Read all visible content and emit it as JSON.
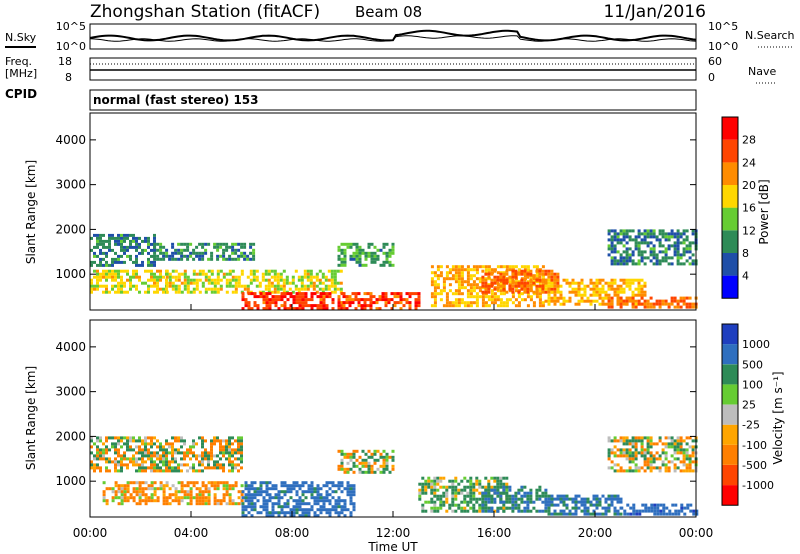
{
  "header": {
    "station": "Zhongshan Station (fitACF)",
    "beam": "Beam 08",
    "date": "11/Jan/2016"
  },
  "noise_panel": {
    "left_label": "N.Sky",
    "right_label": "N.Search",
    "left_ticks": [
      "10^5",
      "10^0"
    ],
    "right_ticks": [
      "10^5",
      "10^0"
    ]
  },
  "freq_panel": {
    "left_label_line1": "Freq.",
    "left_label_line2": "[MHz]",
    "right_label": "Nave",
    "left_ticks": [
      "18",
      "8"
    ],
    "right_ticks": [
      "60",
      "0"
    ]
  },
  "cpid": {
    "label": "CPID",
    "text": "normal (fast stereo) 153"
  },
  "axes": {
    "ylabel": "Slant Range [km]",
    "xlabel": "Time UT",
    "x_ticks": [
      "00:00",
      "04:00",
      "08:00",
      "12:00",
      "16:00",
      "20:00",
      "00:00"
    ],
    "y_ticks": [
      "1000",
      "2000",
      "3000",
      "4000"
    ]
  },
  "power_scale": {
    "label": "Power [dB]",
    "ticks": [
      "4",
      "8",
      "12",
      "16",
      "20",
      "24",
      "28"
    ],
    "colors": [
      "#0000ff",
      "#1f4fa8",
      "#2e8b57",
      "#66cc33",
      "#ffd700",
      "#ff8c00",
      "#ff4500",
      "#ff0000"
    ]
  },
  "velocity_scale": {
    "label": "Velocity [m s⁻¹]",
    "ticks": [
      "1000",
      "500",
      "100",
      "25",
      "-25",
      "-100",
      "-500",
      "-1000"
    ],
    "colors": [
      "#1f3fbf",
      "#2f6fbf",
      "#2e8b57",
      "#66cc33",
      "#bdbdbd",
      "#ffa500",
      "#ff7f00",
      "#ff4500",
      "#ff0000"
    ]
  },
  "chart_data": {
    "type": "heatmap",
    "x": [
      "00:00",
      "04:00",
      "08:00",
      "12:00",
      "16:00",
      "20:00",
      "00:00"
    ],
    "xlabel": "Time UT",
    "ylabel": "Slant Range [km]",
    "ylim": [
      200,
      4600
    ],
    "series": [
      {
        "name": "Power [dB]",
        "scale": [
          0,
          30
        ],
        "regions": [
          {
            "t": [
              0.0,
              2.5
            ],
            "range": [
              1200,
              1900
            ],
            "value": 9
          },
          {
            "t": [
              0.0,
              3.0
            ],
            "range": [
              600,
              1100
            ],
            "value": 17
          },
          {
            "t": [
              2.5,
              6.5
            ],
            "range": [
              1300,
              1700
            ],
            "value": 10
          },
          {
            "t": [
              3.0,
              10.0
            ],
            "range": [
              600,
              1100
            ],
            "value": 17
          },
          {
            "t": [
              6.0,
              10.0
            ],
            "range": [
              250,
              600
            ],
            "value": 27
          },
          {
            "t": [
              10.0,
              13.0
            ],
            "range": [
              250,
              600
            ],
            "value": 26
          },
          {
            "t": [
              9.8,
              12.0
            ],
            "range": [
              1200,
              1700
            ],
            "value": 11
          },
          {
            "t": [
              13.5,
              18.0
            ],
            "range": [
              300,
              1200
            ],
            "value": 20
          },
          {
            "t": [
              15.5,
              18.5
            ],
            "range": [
              600,
              1100
            ],
            "value": 24
          },
          {
            "t": [
              18.0,
              22.0
            ],
            "range": [
              300,
              900
            ],
            "value": 20
          },
          {
            "t": [
              20.5,
              24.0
            ],
            "range": [
              1200,
              2000
            ],
            "value": 9
          },
          {
            "t": [
              20.5,
              24.0
            ],
            "range": [
              250,
              500
            ],
            "value": 24
          }
        ]
      },
      {
        "name": "Velocity [m s⁻¹]",
        "scale": [
          -1000,
          1000
        ],
        "regions": [
          {
            "t": [
              0.0,
              6.0
            ],
            "range": [
              1200,
              2000
            ],
            "value": 0
          },
          {
            "t": [
              0.5,
              6.0
            ],
            "range": [
              500,
              1000
            ],
            "value": -150
          },
          {
            "t": [
              6.0,
              10.5
            ],
            "range": [
              250,
              1000
            ],
            "value": 700
          },
          {
            "t": [
              9.8,
              12.0
            ],
            "range": [
              1200,
              1700
            ],
            "value": 0
          },
          {
            "t": [
              13.0,
              16.5
            ],
            "range": [
              300,
              1100
            ],
            "value": 150
          },
          {
            "t": [
              15.5,
              18.0
            ],
            "range": [
              300,
              900
            ],
            "value": 500
          },
          {
            "t": [
              18.0,
              21.0
            ],
            "range": [
              250,
              700
            ],
            "value": 600
          },
          {
            "t": [
              20.5,
              24.0
            ],
            "range": [
              1200,
              2000
            ],
            "value": 0
          },
          {
            "t": [
              21.0,
              24.0
            ],
            "range": [
              250,
              500
            ],
            "value": 800
          }
        ]
      }
    ]
  }
}
